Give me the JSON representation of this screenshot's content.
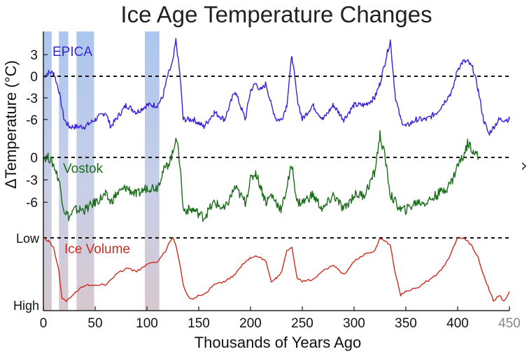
{
  "chart_data": {
    "type": "line",
    "title": "Ice Age Temperature Changes",
    "xlabel": "Thousands of Years Ago",
    "ylabel": "ΔTemperature (°C)",
    "xlim": [
      0,
      450
    ],
    "x_ticks": [
      "0",
      "50",
      "100",
      "150",
      "200",
      "250",
      "300",
      "350",
      "400",
      "450"
    ],
    "highlight_bands": [
      [
        0,
        8
      ],
      [
        15,
        24
      ],
      [
        32,
        49
      ],
      [
        98,
        112
      ]
    ],
    "temperature_ticks": [
      "3",
      "0",
      "-3",
      "-6"
    ],
    "ice_volume_ticks": [
      "Low",
      "High"
    ],
    "series": [
      {
        "name": "EPICA",
        "color": "#3a1fd8",
        "units": "°C",
        "zero_line": true,
        "x": [
          0,
          5,
          10,
          15,
          20,
          25,
          30,
          40,
          50,
          60,
          65,
          70,
          80,
          90,
          100,
          110,
          115,
          120,
          125,
          128,
          132,
          135,
          145,
          155,
          165,
          175,
          185,
          195,
          200,
          205,
          210,
          215,
          220,
          225,
          230,
          235,
          240,
          245,
          250,
          260,
          270,
          280,
          290,
          300,
          310,
          320,
          325,
          330,
          335,
          340,
          345,
          350,
          360,
          370,
          380,
          390,
          395,
          400,
          405,
          410,
          415,
          420,
          425,
          430,
          440,
          450
        ],
        "values": [
          0,
          0.5,
          0.5,
          -2,
          -6,
          -7,
          -7,
          -7,
          -6,
          -5,
          -7,
          -6,
          -4,
          -5,
          -4,
          -4,
          -3,
          0,
          2,
          5,
          0,
          -6,
          -6,
          -7,
          -5,
          -6,
          -2,
          -6,
          -2,
          -1,
          -2,
          -1,
          -4,
          -6,
          -6,
          -4,
          3,
          -3,
          -6,
          -4,
          -6,
          -4,
          -6,
          -4,
          -4,
          -3,
          -1,
          2,
          5,
          -3,
          -6,
          -7,
          -6,
          -6,
          -5,
          -3,
          -2,
          1,
          2,
          2,
          1,
          -2,
          -6,
          -8,
          -6,
          -6
        ]
      },
      {
        "name": "Vostok",
        "color": "#1b6d1b",
        "units": "°C",
        "zero_line": true,
        "x": [
          0,
          5,
          10,
          15,
          20,
          25,
          30,
          40,
          50,
          60,
          65,
          70,
          80,
          90,
          100,
          110,
          115,
          120,
          125,
          128,
          132,
          135,
          145,
          155,
          165,
          175,
          185,
          195,
          200,
          205,
          210,
          215,
          220,
          225,
          230,
          235,
          240,
          245,
          250,
          260,
          270,
          280,
          290,
          300,
          310,
          320,
          325,
          330,
          335,
          340,
          345,
          350,
          360,
          370,
          380,
          390,
          395,
          400,
          405,
          410,
          415,
          420
        ],
        "values": [
          0,
          0,
          -1,
          -3,
          -7,
          -8,
          -7,
          -7,
          -6,
          -5,
          -6,
          -5,
          -4,
          -5,
          -4,
          -4,
          -2,
          -1,
          0.5,
          3,
          -1,
          -7,
          -7,
          -8,
          -6,
          -7,
          -4,
          -6,
          -3,
          -2,
          -4,
          -6,
          -5,
          -6,
          -7,
          -4,
          -1,
          -6,
          -6,
          -5,
          -7,
          -5,
          -7,
          -5,
          -5,
          -2,
          3,
          0,
          -5,
          -6,
          -7,
          -7,
          -6,
          -6,
          -5,
          -4,
          -3,
          -1,
          0,
          2,
          1,
          0
        ]
      },
      {
        "name": "Ice Volume",
        "color": "#cc2b1f",
        "units": "relative (Low → High)",
        "zero_line": false,
        "x": [
          0,
          5,
          10,
          15,
          18,
          22,
          28,
          40,
          50,
          60,
          70,
          80,
          90,
          100,
          110,
          118,
          122,
          125,
          128,
          132,
          135,
          140,
          145,
          150,
          155,
          165,
          175,
          185,
          195,
          200,
          205,
          210,
          215,
          220,
          225,
          230,
          235,
          240,
          245,
          250,
          260,
          270,
          280,
          290,
          300,
          310,
          320,
          325,
          330,
          335,
          340,
          345,
          350,
          360,
          370,
          380,
          390,
          400,
          405,
          410,
          415,
          420,
          425,
          430,
          435,
          440,
          445,
          450
        ],
        "values": [
          0.0,
          0.05,
          0.15,
          0.5,
          0.9,
          0.95,
          0.85,
          0.7,
          0.7,
          0.7,
          0.55,
          0.45,
          0.5,
          0.4,
          0.35,
          0.2,
          0.05,
          0.0,
          0.1,
          0.4,
          0.7,
          0.88,
          0.92,
          0.85,
          0.85,
          0.7,
          0.65,
          0.55,
          0.35,
          0.3,
          0.28,
          0.3,
          0.35,
          0.65,
          0.6,
          0.5,
          0.2,
          0.15,
          0.6,
          0.65,
          0.62,
          0.5,
          0.4,
          0.55,
          0.35,
          0.25,
          0.2,
          0.0,
          0.05,
          0.1,
          0.55,
          0.85,
          0.8,
          0.75,
          0.65,
          0.55,
          0.35,
          0.0,
          0.0,
          0.05,
          0.15,
          0.3,
          0.55,
          0.75,
          0.95,
          0.85,
          0.95,
          0.8
        ]
      }
    ]
  }
}
